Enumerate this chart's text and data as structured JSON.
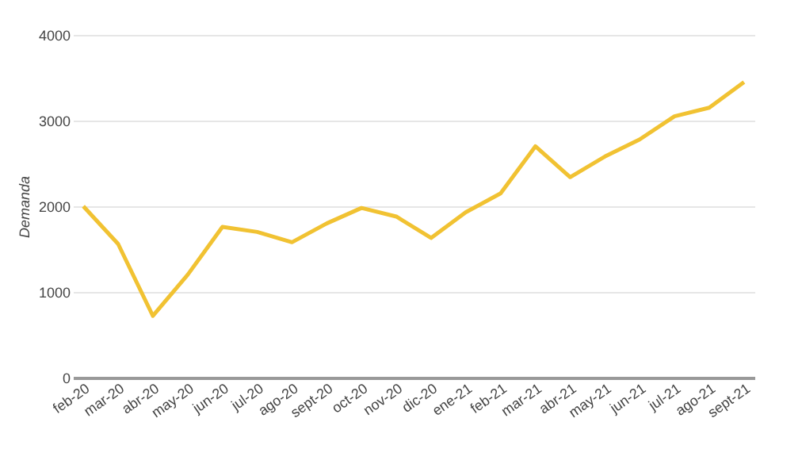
{
  "chart_data": {
    "type": "line",
    "ylabel": "Demanda",
    "categories": [
      "feb-20",
      "mar-20",
      "abr-20",
      "may-20",
      "jun-20",
      "jul-20",
      "ago-20",
      "sept-20",
      "oct-20",
      "nov-20",
      "dic-20",
      "ene-21",
      "feb-21",
      "mar-21",
      "abr-21",
      "may-21",
      "jun-21",
      "jul-21",
      "ago-21",
      "sept-21"
    ],
    "series": [
      {
        "color": "#f1c232",
        "values": [
          2000,
          1560,
          720,
          1200,
          1760,
          1700,
          1580,
          1800,
          1980,
          1880,
          1630,
          1930,
          2150,
          2700,
          2340,
          2580,
          2780,
          3050,
          3150,
          3450
        ]
      }
    ],
    "ylim": [
      0,
      4000
    ],
    "yticks": [
      0,
      1000,
      2000,
      3000,
      4000
    ],
    "grid": "y",
    "marker": "none",
    "line_style": "solid"
  }
}
